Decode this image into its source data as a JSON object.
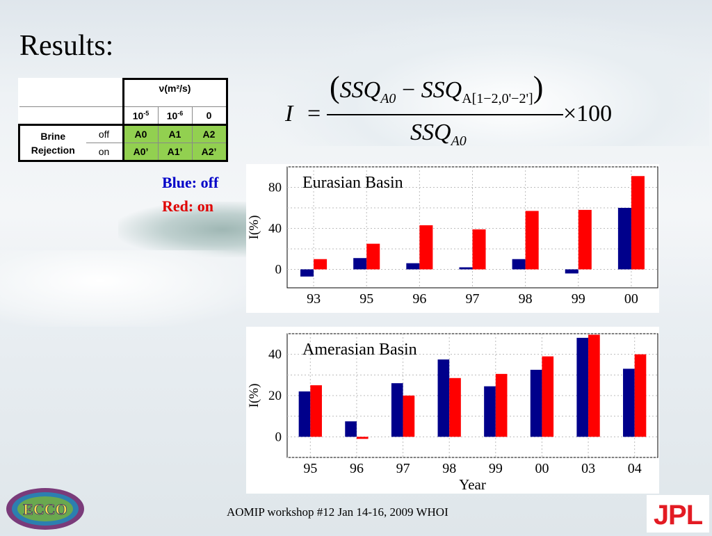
{
  "slide": {
    "title": "Results:",
    "footer": "AOMIP workshop #12 Jan 14-16, 2009 WHOI",
    "legend": {
      "blue_label": "Blue: off",
      "red_label": "Red: on",
      "blue_color": "#00008b",
      "red_color": "#ff0000"
    },
    "logos": {
      "left": "ECCO",
      "right": "JPL"
    }
  },
  "table": {
    "header_group": "ν(m²/s)",
    "col_headers": [
      "10",
      "10",
      "0"
    ],
    "col_header_exponents": [
      "-5",
      "-6",
      ""
    ],
    "row_group_line1": "Brine",
    "row_group_line2": "Rejection",
    "rows": [
      {
        "label": "off",
        "cells": [
          "A0",
          "A1",
          "A2"
        ]
      },
      {
        "label": "on",
        "cells": [
          "A0’",
          "A1’",
          "A2’"
        ]
      }
    ]
  },
  "formula": {
    "lhs": "I",
    "eq": "=",
    "numerator_a": "SSQ",
    "numerator_a_sub": "A0",
    "minus": "−",
    "numerator_b": "SSQ",
    "numerator_b_sub": "A[1−2,0'−2']",
    "denominator": "SSQ",
    "denominator_sub": "A0",
    "multiplier": "×100"
  },
  "chart_data": [
    {
      "type": "bar",
      "title": "Eurasian Basin",
      "xlabel": "",
      "ylabel": "I(%)",
      "categories": [
        "93",
        "95",
        "96",
        "97",
        "98",
        "99",
        "00"
      ],
      "series": [
        {
          "color": "#00008b",
          "values": [
            -7,
            11,
            6,
            2,
            10,
            -4,
            60
          ]
        },
        {
          "color": "#ff0000",
          "values": [
            10,
            25,
            43,
            39,
            57,
            58,
            91
          ]
        }
      ],
      "ylim": [
        -18,
        100
      ],
      "yticks": [
        0,
        40,
        80
      ],
      "grid": true
    },
    {
      "type": "bar",
      "title": "Amerasian Basin",
      "xlabel": "Year",
      "ylabel": "I(%)",
      "categories": [
        "95",
        "96",
        "97",
        "98",
        "99",
        "00",
        "03",
        "04"
      ],
      "series": [
        {
          "color": "#00008b",
          "values": [
            22,
            7.5,
            26,
            37.5,
            24.5,
            32.5,
            48,
            33
          ]
        },
        {
          "color": "#ff0000",
          "values": [
            25,
            -1,
            20,
            28.5,
            30.5,
            39,
            49.5,
            40
          ]
        }
      ],
      "ylim": [
        -10,
        50
      ],
      "yticks": [
        0,
        20,
        40
      ],
      "grid": true
    }
  ]
}
